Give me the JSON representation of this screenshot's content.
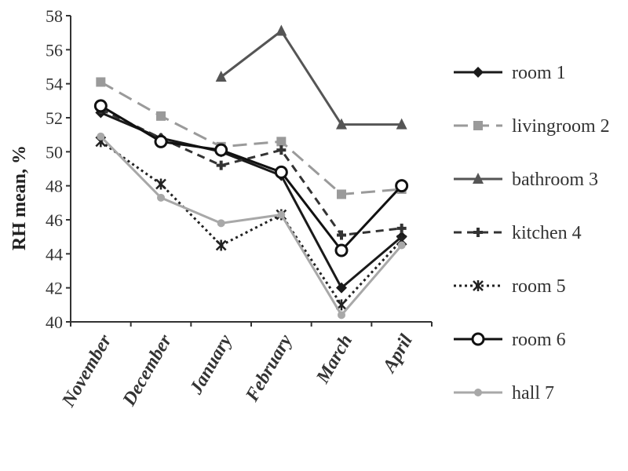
{
  "chart_data": {
    "type": "line",
    "title": "",
    "xlabel": "",
    "ylabel": "RH mean, %",
    "ylim": [
      40,
      58
    ],
    "yticks": [
      40,
      42,
      44,
      46,
      48,
      50,
      52,
      54,
      56,
      58
    ],
    "categories": [
      "November",
      "December",
      "January",
      "February",
      "March",
      "April"
    ],
    "legend_position": "right",
    "grid": false,
    "series": [
      {
        "name": "room 1",
        "values": [
          52.3,
          50.8,
          50.0,
          48.6,
          42.0,
          45.0
        ],
        "color": "#1a1a1a",
        "dash": "solid",
        "marker": "diamond",
        "width": 3
      },
      {
        "name": "livingroom 2",
        "values": [
          54.1,
          52.1,
          50.3,
          50.6,
          47.5,
          47.8
        ],
        "color": "#9a9a9a",
        "dash": "long",
        "marker": "square",
        "width": 3
      },
      {
        "name": "bathroom 3",
        "values": [
          null,
          null,
          54.4,
          57.1,
          51.6,
          51.6
        ],
        "color": "#555555",
        "dash": "solid",
        "marker": "triangle",
        "width": 3
      },
      {
        "name": "kitchen 4",
        "values": [
          52.5,
          50.8,
          49.2,
          50.1,
          45.1,
          45.5
        ],
        "color": "#333333",
        "dash": "dash",
        "marker": "plus",
        "width": 3
      },
      {
        "name": "room 5",
        "values": [
          50.6,
          48.1,
          44.5,
          46.3,
          41.0,
          44.8
        ],
        "color": "#222222",
        "dash": "dot",
        "marker": "star",
        "width": 3
      },
      {
        "name": "room 6",
        "values": [
          52.7,
          50.6,
          50.1,
          48.8,
          44.2,
          48.0
        ],
        "color": "#111111",
        "dash": "solid",
        "marker": "circle",
        "width": 3
      },
      {
        "name": "hall 7",
        "values": [
          50.9,
          47.3,
          45.8,
          46.3,
          40.4,
          44.5
        ],
        "color": "#a8a8a8",
        "dash": "solid",
        "marker": "dot",
        "width": 3
      }
    ]
  }
}
